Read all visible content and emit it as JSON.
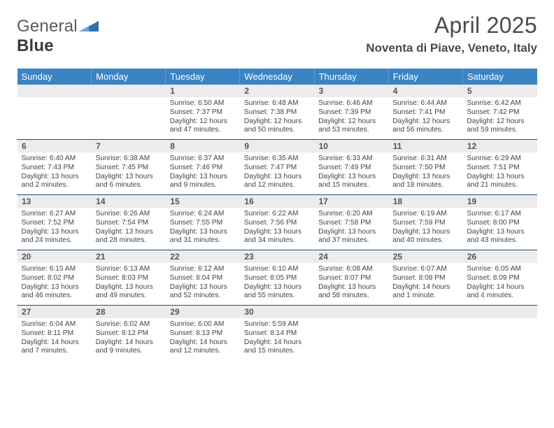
{
  "logo": {
    "word1": "General",
    "word2": "Blue",
    "triangle_color": "#2f6fab"
  },
  "title": "April 2025",
  "subtitle": "Noventa di Piave, Veneto, Italy",
  "colors": {
    "header_bg": "#3b84c4",
    "header_text": "#ffffff",
    "daynum_bg": "#ececec",
    "daynum_text": "#555555",
    "cell_text": "#444444",
    "row_divider": "#1e4f7a",
    "title_text": "#4a4a4a"
  },
  "days_of_week": [
    "Sunday",
    "Monday",
    "Tuesday",
    "Wednesday",
    "Thursday",
    "Friday",
    "Saturday"
  ],
  "weeks": [
    [
      null,
      null,
      {
        "n": "1",
        "sunrise": "Sunrise: 6:50 AM",
        "sunset": "Sunset: 7:37 PM",
        "day1": "Daylight: 12 hours",
        "day2": "and 47 minutes."
      },
      {
        "n": "2",
        "sunrise": "Sunrise: 6:48 AM",
        "sunset": "Sunset: 7:38 PM",
        "day1": "Daylight: 12 hours",
        "day2": "and 50 minutes."
      },
      {
        "n": "3",
        "sunrise": "Sunrise: 6:46 AM",
        "sunset": "Sunset: 7:39 PM",
        "day1": "Daylight: 12 hours",
        "day2": "and 53 minutes."
      },
      {
        "n": "4",
        "sunrise": "Sunrise: 6:44 AM",
        "sunset": "Sunset: 7:41 PM",
        "day1": "Daylight: 12 hours",
        "day2": "and 56 minutes."
      },
      {
        "n": "5",
        "sunrise": "Sunrise: 6:42 AM",
        "sunset": "Sunset: 7:42 PM",
        "day1": "Daylight: 12 hours",
        "day2": "and 59 minutes."
      }
    ],
    [
      {
        "n": "6",
        "sunrise": "Sunrise: 6:40 AM",
        "sunset": "Sunset: 7:43 PM",
        "day1": "Daylight: 13 hours",
        "day2": "and 2 minutes."
      },
      {
        "n": "7",
        "sunrise": "Sunrise: 6:38 AM",
        "sunset": "Sunset: 7:45 PM",
        "day1": "Daylight: 13 hours",
        "day2": "and 6 minutes."
      },
      {
        "n": "8",
        "sunrise": "Sunrise: 6:37 AM",
        "sunset": "Sunset: 7:46 PM",
        "day1": "Daylight: 13 hours",
        "day2": "and 9 minutes."
      },
      {
        "n": "9",
        "sunrise": "Sunrise: 6:35 AM",
        "sunset": "Sunset: 7:47 PM",
        "day1": "Daylight: 13 hours",
        "day2": "and 12 minutes."
      },
      {
        "n": "10",
        "sunrise": "Sunrise: 6:33 AM",
        "sunset": "Sunset: 7:49 PM",
        "day1": "Daylight: 13 hours",
        "day2": "and 15 minutes."
      },
      {
        "n": "11",
        "sunrise": "Sunrise: 6:31 AM",
        "sunset": "Sunset: 7:50 PM",
        "day1": "Daylight: 13 hours",
        "day2": "and 18 minutes."
      },
      {
        "n": "12",
        "sunrise": "Sunrise: 6:29 AM",
        "sunset": "Sunset: 7:51 PM",
        "day1": "Daylight: 13 hours",
        "day2": "and 21 minutes."
      }
    ],
    [
      {
        "n": "13",
        "sunrise": "Sunrise: 6:27 AM",
        "sunset": "Sunset: 7:52 PM",
        "day1": "Daylight: 13 hours",
        "day2": "and 24 minutes."
      },
      {
        "n": "14",
        "sunrise": "Sunrise: 6:26 AM",
        "sunset": "Sunset: 7:54 PM",
        "day1": "Daylight: 13 hours",
        "day2": "and 28 minutes."
      },
      {
        "n": "15",
        "sunrise": "Sunrise: 6:24 AM",
        "sunset": "Sunset: 7:55 PM",
        "day1": "Daylight: 13 hours",
        "day2": "and 31 minutes."
      },
      {
        "n": "16",
        "sunrise": "Sunrise: 6:22 AM",
        "sunset": "Sunset: 7:56 PM",
        "day1": "Daylight: 13 hours",
        "day2": "and 34 minutes."
      },
      {
        "n": "17",
        "sunrise": "Sunrise: 6:20 AM",
        "sunset": "Sunset: 7:58 PM",
        "day1": "Daylight: 13 hours",
        "day2": "and 37 minutes."
      },
      {
        "n": "18",
        "sunrise": "Sunrise: 6:19 AM",
        "sunset": "Sunset: 7:59 PM",
        "day1": "Daylight: 13 hours",
        "day2": "and 40 minutes."
      },
      {
        "n": "19",
        "sunrise": "Sunrise: 6:17 AM",
        "sunset": "Sunset: 8:00 PM",
        "day1": "Daylight: 13 hours",
        "day2": "and 43 minutes."
      }
    ],
    [
      {
        "n": "20",
        "sunrise": "Sunrise: 6:15 AM",
        "sunset": "Sunset: 8:02 PM",
        "day1": "Daylight: 13 hours",
        "day2": "and 46 minutes."
      },
      {
        "n": "21",
        "sunrise": "Sunrise: 6:13 AM",
        "sunset": "Sunset: 8:03 PM",
        "day1": "Daylight: 13 hours",
        "day2": "and 49 minutes."
      },
      {
        "n": "22",
        "sunrise": "Sunrise: 6:12 AM",
        "sunset": "Sunset: 8:04 PM",
        "day1": "Daylight: 13 hours",
        "day2": "and 52 minutes."
      },
      {
        "n": "23",
        "sunrise": "Sunrise: 6:10 AM",
        "sunset": "Sunset: 8:05 PM",
        "day1": "Daylight: 13 hours",
        "day2": "and 55 minutes."
      },
      {
        "n": "24",
        "sunrise": "Sunrise: 6:08 AM",
        "sunset": "Sunset: 8:07 PM",
        "day1": "Daylight: 13 hours",
        "day2": "and 58 minutes."
      },
      {
        "n": "25",
        "sunrise": "Sunrise: 6:07 AM",
        "sunset": "Sunset: 8:08 PM",
        "day1": "Daylight: 14 hours",
        "day2": "and 1 minute."
      },
      {
        "n": "26",
        "sunrise": "Sunrise: 6:05 AM",
        "sunset": "Sunset: 8:09 PM",
        "day1": "Daylight: 14 hours",
        "day2": "and 4 minutes."
      }
    ],
    [
      {
        "n": "27",
        "sunrise": "Sunrise: 6:04 AM",
        "sunset": "Sunset: 8:11 PM",
        "day1": "Daylight: 14 hours",
        "day2": "and 7 minutes."
      },
      {
        "n": "28",
        "sunrise": "Sunrise: 6:02 AM",
        "sunset": "Sunset: 8:12 PM",
        "day1": "Daylight: 14 hours",
        "day2": "and 9 minutes."
      },
      {
        "n": "29",
        "sunrise": "Sunrise: 6:00 AM",
        "sunset": "Sunset: 8:13 PM",
        "day1": "Daylight: 14 hours",
        "day2": "and 12 minutes."
      },
      {
        "n": "30",
        "sunrise": "Sunrise: 5:59 AM",
        "sunset": "Sunset: 8:14 PM",
        "day1": "Daylight: 14 hours",
        "day2": "and 15 minutes."
      },
      null,
      null,
      null
    ]
  ]
}
